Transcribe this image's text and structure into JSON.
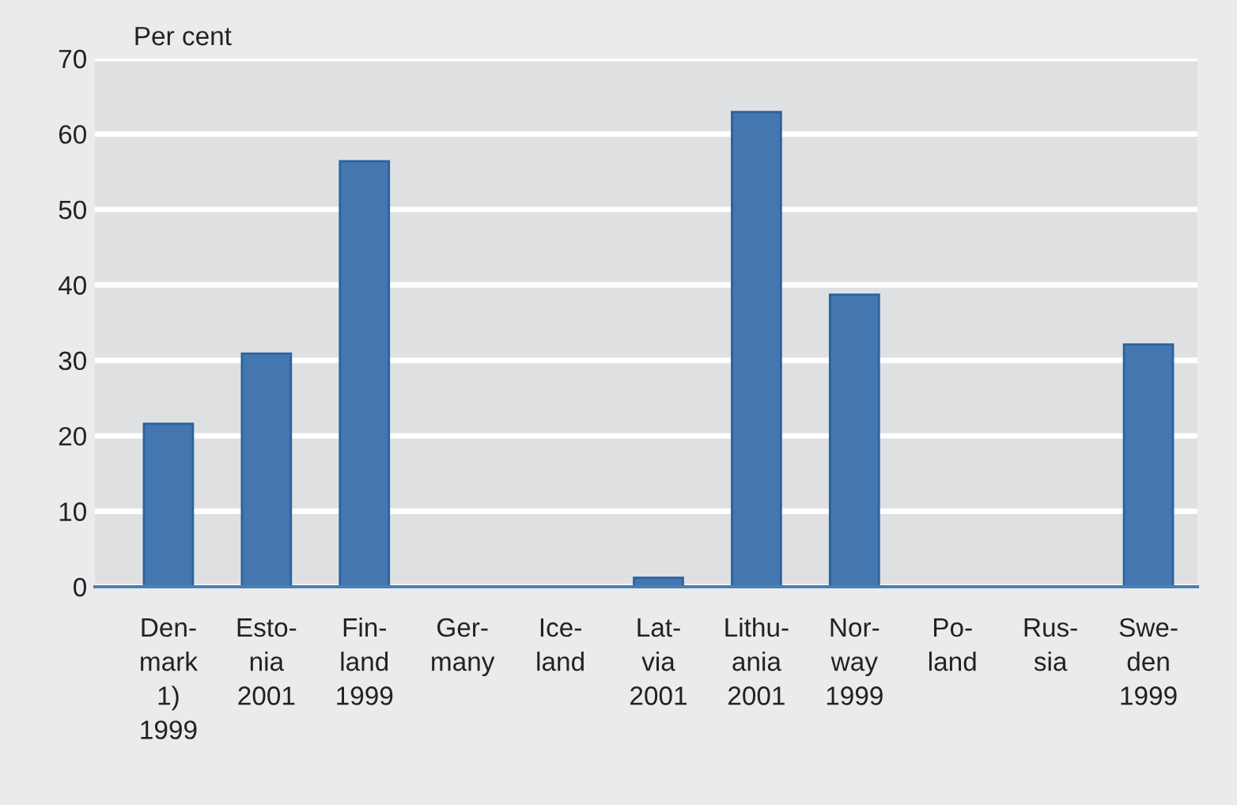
{
  "chart_data": {
    "type": "bar",
    "ylabel": "Per cent",
    "categories": [
      "Den-\nmark\n1)\n1999",
      "Esto-\nnia\n2001",
      "Fin-\nland\n1999",
      "Ger-\nmany",
      "Ice-\nland",
      "Lat-\nvia\n2001",
      "Lithu-\nania\n2001",
      "Nor-\nway\n1999",
      "Po-\nland",
      "Rus-\nsia",
      "Swe-\nden\n1999"
    ],
    "values": [
      21.6,
      30.9,
      56.4,
      null,
      null,
      1.2,
      62.9,
      38.7,
      null,
      null,
      32.1
    ],
    "color": "#4477b0",
    "ylim": [
      0,
      70
    ],
    "yticks": [
      0,
      10,
      20,
      30,
      40,
      50,
      60,
      70
    ],
    "grid": "y"
  }
}
